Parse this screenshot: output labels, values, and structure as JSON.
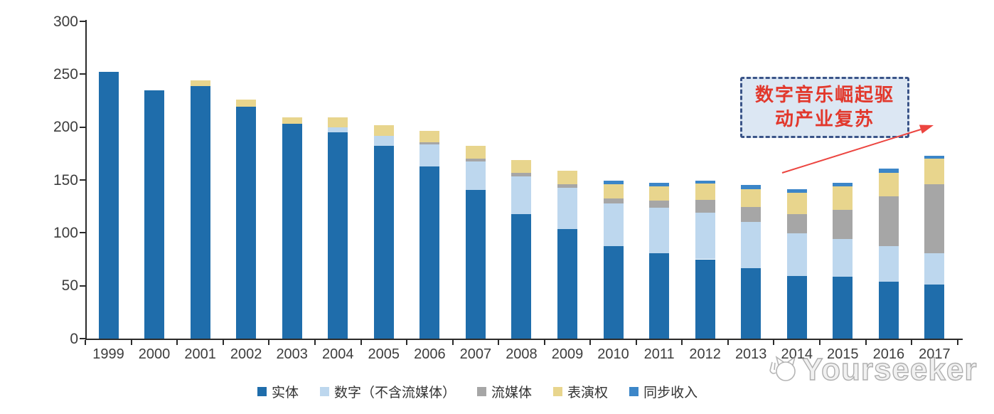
{
  "chart_data": {
    "type": "bar",
    "stacked": true,
    "title": "",
    "xlabel": "",
    "ylabel": "",
    "grid": "off",
    "legend_position": "bottom",
    "categories": [
      "1999",
      "2000",
      "2001",
      "2002",
      "2003",
      "2004",
      "2005",
      "2006",
      "2007",
      "2008",
      "2009",
      "2010",
      "2011",
      "2012",
      "2013",
      "2014",
      "2015",
      "2016",
      "2017"
    ],
    "series": [
      {
        "name": "实体",
        "color": "#1f6dab",
        "values": [
          252.5,
          234.5,
          239,
          219.5,
          203,
          195,
          182,
          163,
          140.5,
          118,
          103.5,
          87.5,
          81,
          75,
          66.5,
          59,
          58.5,
          54,
          51
        ]
      },
      {
        "name": "数字（不含流媒体）",
        "color": "#bdd7ee",
        "values": [
          0,
          0,
          0,
          0,
          0,
          4.5,
          10,
          20.5,
          27,
          35.5,
          39,
          40.5,
          43,
          44,
          43.5,
          40.5,
          36,
          33.5,
          30
        ]
      },
      {
        "name": "流媒体",
        "color": "#a6a6a6",
        "values": [
          0,
          0,
          0,
          0,
          0,
          0,
          0,
          2,
          3,
          3,
          3.5,
          4.5,
          6.5,
          12,
          14.5,
          18,
          27.5,
          47,
          65
        ]
      },
      {
        "name": "表演权",
        "color": "#e8d58d",
        "values": [
          0,
          0,
          5,
          6.5,
          6.5,
          9.5,
          10,
          11,
          11.5,
          12,
          12.5,
          13.5,
          13.5,
          15.5,
          17,
          20.5,
          22,
          22.5,
          24
        ]
      },
      {
        "name": "同步收入",
        "color": "#3c86c8",
        "values": [
          0,
          0,
          0,
          0,
          0,
          0,
          0,
          0,
          0,
          0,
          0,
          3.5,
          3.5,
          3,
          3.5,
          3.5,
          3.5,
          3.5,
          3
        ]
      }
    ],
    "y_axis": {
      "min": 0,
      "max": 300,
      "step": 50,
      "tick_labels": [
        "0",
        "50",
        "100",
        "150",
        "200",
        "250",
        "300"
      ]
    }
  },
  "annotation": {
    "line1": "数字音乐崛起驱",
    "line2": "动产业复苏",
    "text_color": "#e2382c",
    "box_border_color": "#3a5488",
    "box_fill_color": "#dce7f3",
    "arrow_color": "#ec4540"
  },
  "watermark": {
    "text": "Yourseeker"
  }
}
